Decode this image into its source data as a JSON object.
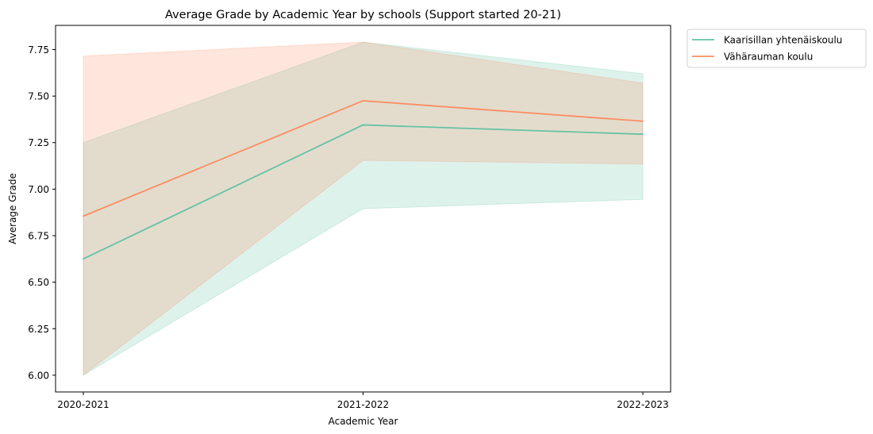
{
  "chart_data": {
    "type": "line",
    "title": "Average Grade by Academic Year by schools (Support started 20-21)",
    "xlabel": "Academic Year",
    "ylabel": "Average Grade",
    "categories": [
      "2020-2021",
      "2021-2022",
      "2022-2023"
    ],
    "ylim": [
      5.91,
      7.88
    ],
    "yticks": [
      6.0,
      6.25,
      6.5,
      6.75,
      7.0,
      7.25,
      7.5,
      7.75
    ],
    "ytick_labels": [
      "6.00",
      "6.25",
      "6.50",
      "6.75",
      "7.00",
      "7.25",
      "7.50",
      "7.75"
    ],
    "grid": false,
    "legend_position": "outside-top-right",
    "series": [
      {
        "name": "Kaarisillan yhtenäiskoulu",
        "color": "#66c2a5",
        "values": [
          6.625,
          7.345,
          7.295
        ],
        "ci_lower": [
          6.0,
          6.895,
          6.945
        ],
        "ci_upper": [
          7.25,
          7.79,
          7.62
        ]
      },
      {
        "name": "Vähärauman koulu",
        "color": "#fc8d62",
        "values": [
          6.855,
          7.475,
          7.365
        ],
        "ci_lower": [
          6.0,
          7.155,
          7.135
        ],
        "ci_upper": [
          7.715,
          7.79,
          7.57
        ]
      }
    ]
  }
}
